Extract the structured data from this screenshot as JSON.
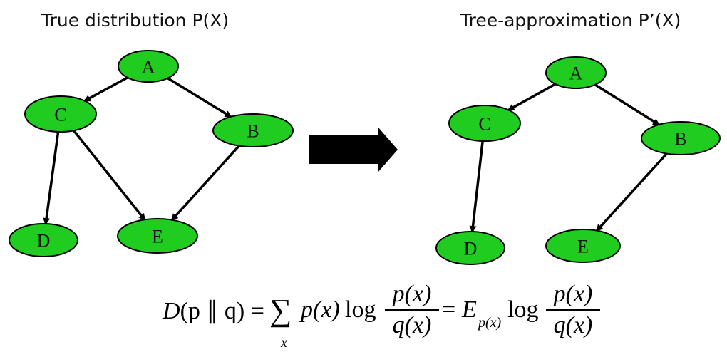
{
  "left_panel": {
    "title": "True distribution P(X)",
    "nodes": [
      {
        "id": "A",
        "label": "A"
      },
      {
        "id": "C",
        "label": "C"
      },
      {
        "id": "B",
        "label": "B"
      },
      {
        "id": "D",
        "label": "D"
      },
      {
        "id": "E",
        "label": "E"
      }
    ],
    "edges": [
      {
        "from": "A",
        "to": "C"
      },
      {
        "from": "A",
        "to": "B"
      },
      {
        "from": "C",
        "to": "D"
      },
      {
        "from": "C",
        "to": "E"
      },
      {
        "from": "B",
        "to": "E"
      }
    ]
  },
  "right_panel": {
    "title": "Tree-approximation  P’(X)",
    "nodes": [
      {
        "id": "A",
        "label": "A"
      },
      {
        "id": "C",
        "label": "C"
      },
      {
        "id": "B",
        "label": "B"
      },
      {
        "id": "D",
        "label": "D"
      },
      {
        "id": "E",
        "label": "E"
      }
    ],
    "edges": [
      {
        "from": "A",
        "to": "C"
      },
      {
        "from": "A",
        "to": "B"
      },
      {
        "from": "C",
        "to": "D"
      },
      {
        "from": "B",
        "to": "E"
      }
    ]
  },
  "colors": {
    "node_fill": "#1fcc1f",
    "arrow": "#000000"
  },
  "formula": {
    "lhs": "D",
    "lhs_args": "(p ∥ q) =",
    "sum_symbol": "∑",
    "sum_index": "x",
    "term": "p(x)",
    "log1": "log",
    "frac1_num": "p(x)",
    "frac1_den": "q(x)",
    "equals": "=",
    "expect": "E",
    "expect_sub": "p(x)",
    "log2": "log",
    "frac2_num": "p(x)",
    "frac2_den": "q(x)"
  }
}
